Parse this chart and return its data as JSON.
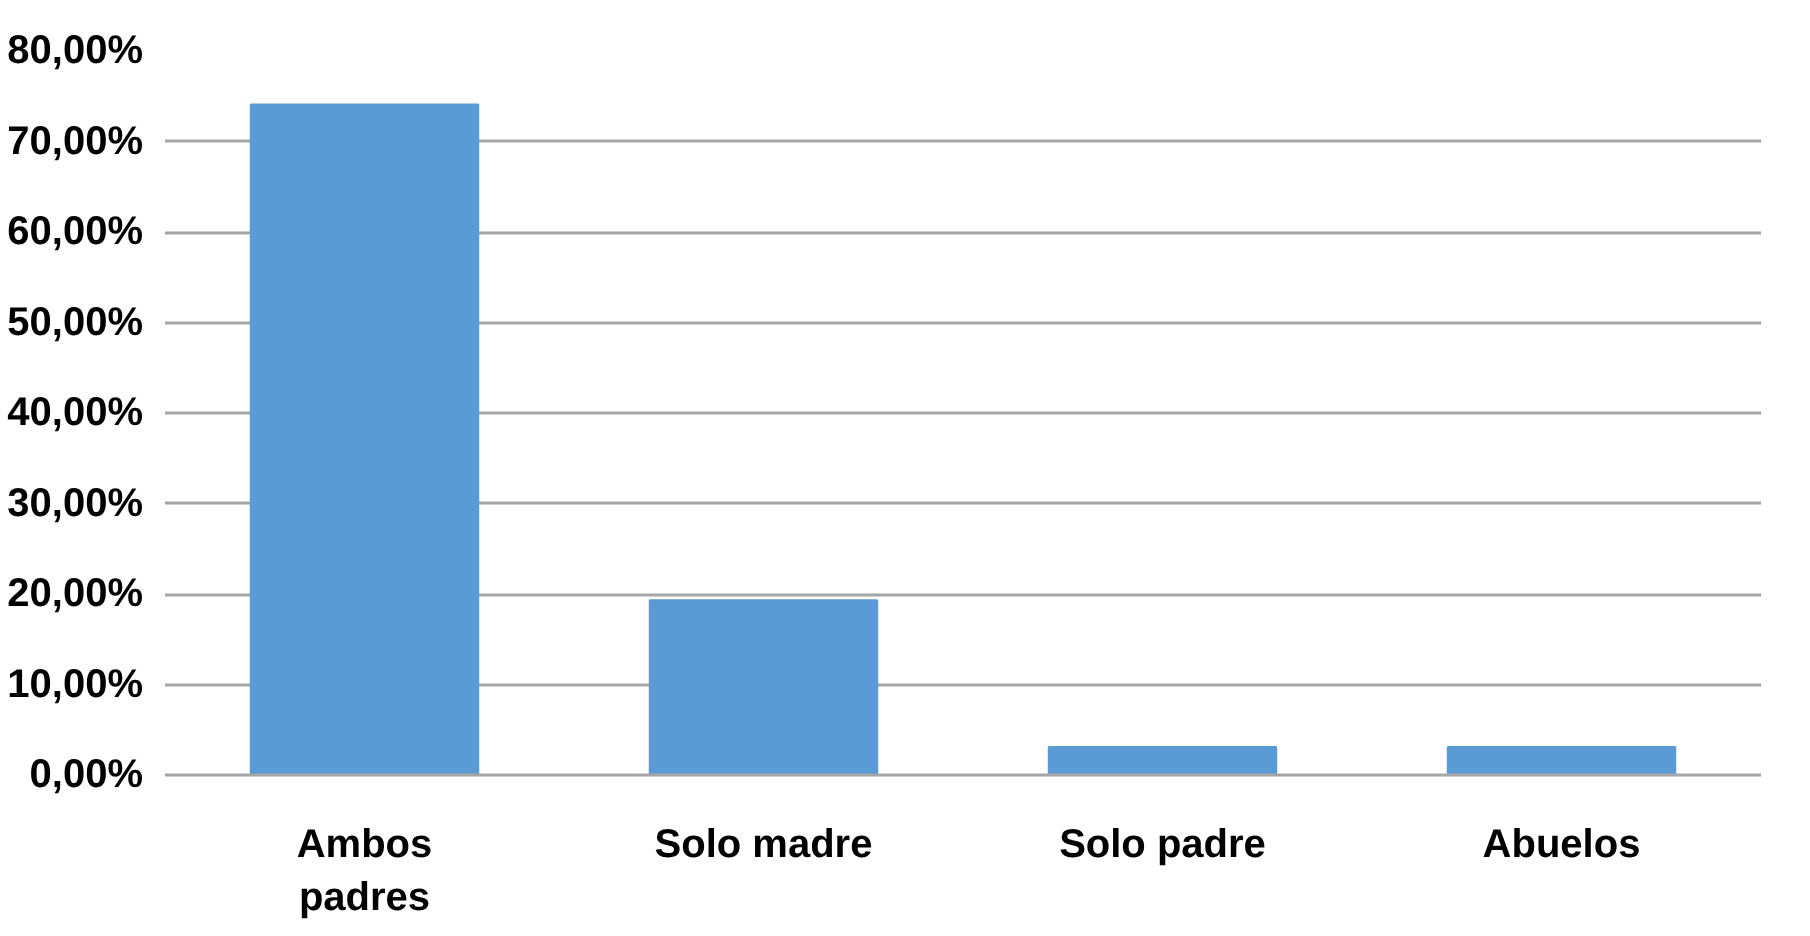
{
  "chart_data": {
    "type": "bar",
    "categories": [
      "Ambos padres",
      "Solo madre",
      "Solo padre",
      "Abuelos"
    ],
    "values": [
      74.1,
      19.3,
      3.1,
      3.1
    ],
    "color": "#5b9bd5",
    "ylim": [
      0,
      80
    ],
    "yticks": [
      {
        "value": 0,
        "label": "0,00%"
      },
      {
        "value": 10,
        "label": "10,00%"
      },
      {
        "value": 20,
        "label": "20,00%"
      },
      {
        "value": 30,
        "label": "30,00%"
      },
      {
        "value": 40,
        "label": "40,00%"
      },
      {
        "value": 50,
        "label": "50,00%"
      },
      {
        "value": 60,
        "label": "60,00%"
      },
      {
        "value": 70,
        "label": "70,00%"
      },
      {
        "value": 80,
        "label": "80,00%"
      }
    ],
    "grid": "y"
  }
}
